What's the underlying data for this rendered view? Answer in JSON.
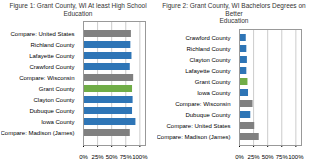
{
  "chart_data": [
    {
      "type": "bar",
      "orientation": "horizontal",
      "title": "Figure 1: Grant County, WI At least High School Education",
      "categories": [
        "Compare: United States",
        "Richland County",
        "Lafayette County",
        "Crawford County",
        "Compare: Wisconsin",
        "Grant County",
        "Clayton County",
        "Dubuque County",
        "Iowa County",
        "Compare: Madison (James)"
      ],
      "values": [
        85,
        84,
        86,
        83,
        89,
        87,
        88,
        87,
        93,
        83
      ],
      "colors": [
        "#808080",
        "#2e75b6",
        "#2e75b6",
        "#2e75b6",
        "#808080",
        "#70ad47",
        "#2e75b6",
        "#2e75b6",
        "#2e75b6",
        "#808080"
      ],
      "xlim": [
        0,
        110
      ],
      "xticks": [
        {
          "value": 0,
          "label": "0%"
        },
        {
          "value": 25,
          "label": "25%"
        },
        {
          "value": 50,
          "label": "50%"
        },
        {
          "value": 75,
          "label": "75%"
        },
        {
          "value": 100,
          "label": "100%"
        }
      ],
      "grid": true
    },
    {
      "type": "bar",
      "orientation": "horizontal",
      "title": "Figure 2: Grant County, WI Bachelors Degrees on Better\nEducation",
      "categories": [
        "Crawford County",
        "Richland County",
        "Clayton County",
        "Lafayette County",
        "Grant County",
        "Iowa County",
        "Compare: Wisconsin",
        "Dubuque County",
        "Compare: United States",
        "Compare: Madison (James)"
      ],
      "values": [
        12,
        13,
        14,
        13,
        15,
        16,
        24,
        20,
        27,
        35
      ],
      "colors": [
        "#2e75b6",
        "#2e75b6",
        "#2e75b6",
        "#2e75b6",
        "#70ad47",
        "#2e75b6",
        "#808080",
        "#2e75b6",
        "#808080",
        "#808080"
      ],
      "xlim": [
        0,
        110
      ],
      "xticks": [
        {
          "value": 0,
          "label": "0%"
        },
        {
          "value": 25,
          "label": "25%"
        },
        {
          "value": 50,
          "label": "50%"
        },
        {
          "value": 75,
          "label": "75%"
        },
        {
          "value": 100,
          "label": "100%"
        }
      ],
      "grid": true
    }
  ]
}
